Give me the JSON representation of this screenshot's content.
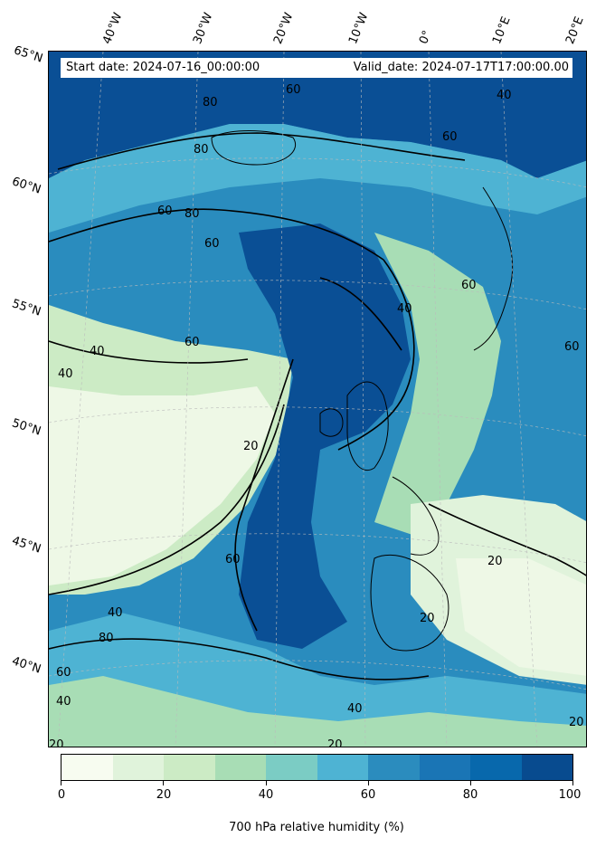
{
  "header": {
    "start_date": "Start date: 2024-07-16_00:00:00",
    "valid_date": "Valid_date: 2024-07-17T17:00:00.00"
  },
  "axes": {
    "lon_labels": [
      "40°W",
      "30°W",
      "20°W",
      "10°W",
      "0°",
      "10°E",
      "20°E"
    ],
    "lat_labels": [
      "65°N",
      "60°N",
      "55°N",
      "50°N",
      "45°N",
      "40°N"
    ]
  },
  "contour_labels": [
    "20",
    "40",
    "60",
    "80"
  ],
  "colorbar": {
    "label": "700 hPa relative humidity (%)",
    "ticks": [
      "0",
      "20",
      "40",
      "60",
      "80",
      "100"
    ],
    "colors": [
      "#f7fcf0",
      "#e0f3db",
      "#ccebc5",
      "#a8ddb5",
      "#7bccc4",
      "#4eb3d3",
      "#2b8cbe",
      "#1a75b5",
      "#0868ac",
      "#084b8f"
    ]
  },
  "colors": {
    "very_dry": "#eef8e6",
    "dry": "#d4eecb",
    "mid": "#9fd8b8",
    "moist": "#4ea9d3",
    "wet": "#1a6fb0",
    "saturated": "#0a4f95"
  }
}
